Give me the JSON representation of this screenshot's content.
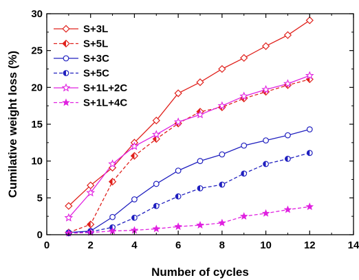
{
  "chart_data": {
    "type": "line",
    "xlabel": "Number of cycles",
    "ylabel": "Cumilative weight loss (%)",
    "xlim": [
      0,
      14
    ],
    "ylim": [
      0,
      30
    ],
    "xticks": [
      0,
      2,
      4,
      6,
      8,
      10,
      12,
      14
    ],
    "yticks": [
      0,
      5,
      10,
      15,
      20,
      25,
      30
    ],
    "grid": false,
    "legend_position": "top-left",
    "series": [
      {
        "name": "S+3L",
        "color": "#e0201b",
        "dash": "solid",
        "marker": "diamond-open",
        "x": [
          1,
          2,
          3,
          4,
          5,
          6,
          7,
          8,
          9,
          10,
          11,
          12
        ],
        "y": [
          3.9,
          6.7,
          9.1,
          12.5,
          15.5,
          19.2,
          20.7,
          22.5,
          24.0,
          25.6,
          27.1,
          29.1
        ]
      },
      {
        "name": "S+5L",
        "color": "#e0201b",
        "dash": "dashed",
        "marker": "diamond-half",
        "x": [
          1,
          2,
          3,
          4,
          5,
          6,
          7,
          8,
          9,
          10,
          11,
          12
        ],
        "y": [
          0.3,
          1.4,
          7.2,
          10.7,
          13.0,
          15.1,
          16.7,
          17.3,
          18.5,
          19.4,
          20.3,
          21.1
        ]
      },
      {
        "name": "S+3C",
        "color": "#1f1fbf",
        "dash": "solid",
        "marker": "circle-open",
        "x": [
          1,
          2,
          3,
          4,
          5,
          6,
          7,
          8,
          9,
          10,
          11,
          12
        ],
        "y": [
          0.3,
          0.5,
          2.4,
          4.8,
          6.9,
          8.7,
          10.0,
          10.9,
          12.1,
          12.8,
          13.5,
          14.3
        ]
      },
      {
        "name": "S+5C",
        "color": "#1f1fbf",
        "dash": "dashed",
        "marker": "circle-half",
        "x": [
          1,
          2,
          3,
          4,
          5,
          6,
          7,
          8,
          9,
          10,
          11,
          12
        ],
        "y": [
          0.2,
          0.4,
          1.0,
          2.3,
          3.9,
          5.2,
          6.3,
          6.8,
          8.3,
          9.6,
          10.3,
          11.1
        ]
      },
      {
        "name": "S+1L+2C",
        "color": "#e020e0",
        "dash": "solid",
        "marker": "star-open",
        "x": [
          1,
          2,
          3,
          4,
          5,
          6,
          7,
          8,
          9,
          10,
          11,
          12
        ],
        "y": [
          2.3,
          5.7,
          9.6,
          12.0,
          13.6,
          15.3,
          16.3,
          17.5,
          18.8,
          19.7,
          20.5,
          21.6
        ]
      },
      {
        "name": "S+1L+4C",
        "color": "#e020e0",
        "dash": "dashed",
        "marker": "star-filled",
        "x": [
          1,
          2,
          3,
          4,
          5,
          6,
          7,
          8,
          9,
          10,
          11,
          12
        ],
        "y": [
          0.2,
          0.3,
          0.5,
          0.6,
          0.8,
          1.1,
          1.3,
          1.6,
          2.5,
          2.9,
          3.4,
          3.8
        ]
      }
    ]
  }
}
